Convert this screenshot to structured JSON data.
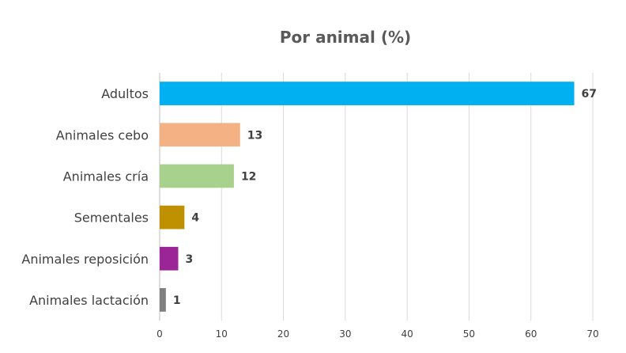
{
  "chart_data": {
    "type": "bar",
    "orientation": "horizontal",
    "title": "Por animal (%)",
    "xlabel": "",
    "ylabel": "",
    "xlim": [
      0,
      70
    ],
    "ticks": [
      0,
      10,
      20,
      30,
      40,
      50,
      60,
      70
    ],
    "grid": true,
    "legend": "none",
    "categories": [
      "Adultos",
      "Animales cebo",
      "Animales cría",
      "Sementales",
      "Animales reposición",
      "Animales lactación"
    ],
    "values": [
      67,
      13,
      12,
      4,
      3,
      1
    ],
    "colors": [
      "#00b0f0",
      "#f4b183",
      "#a9d18e",
      "#bf9000",
      "#9b2596",
      "#7f7f7f"
    ]
  }
}
